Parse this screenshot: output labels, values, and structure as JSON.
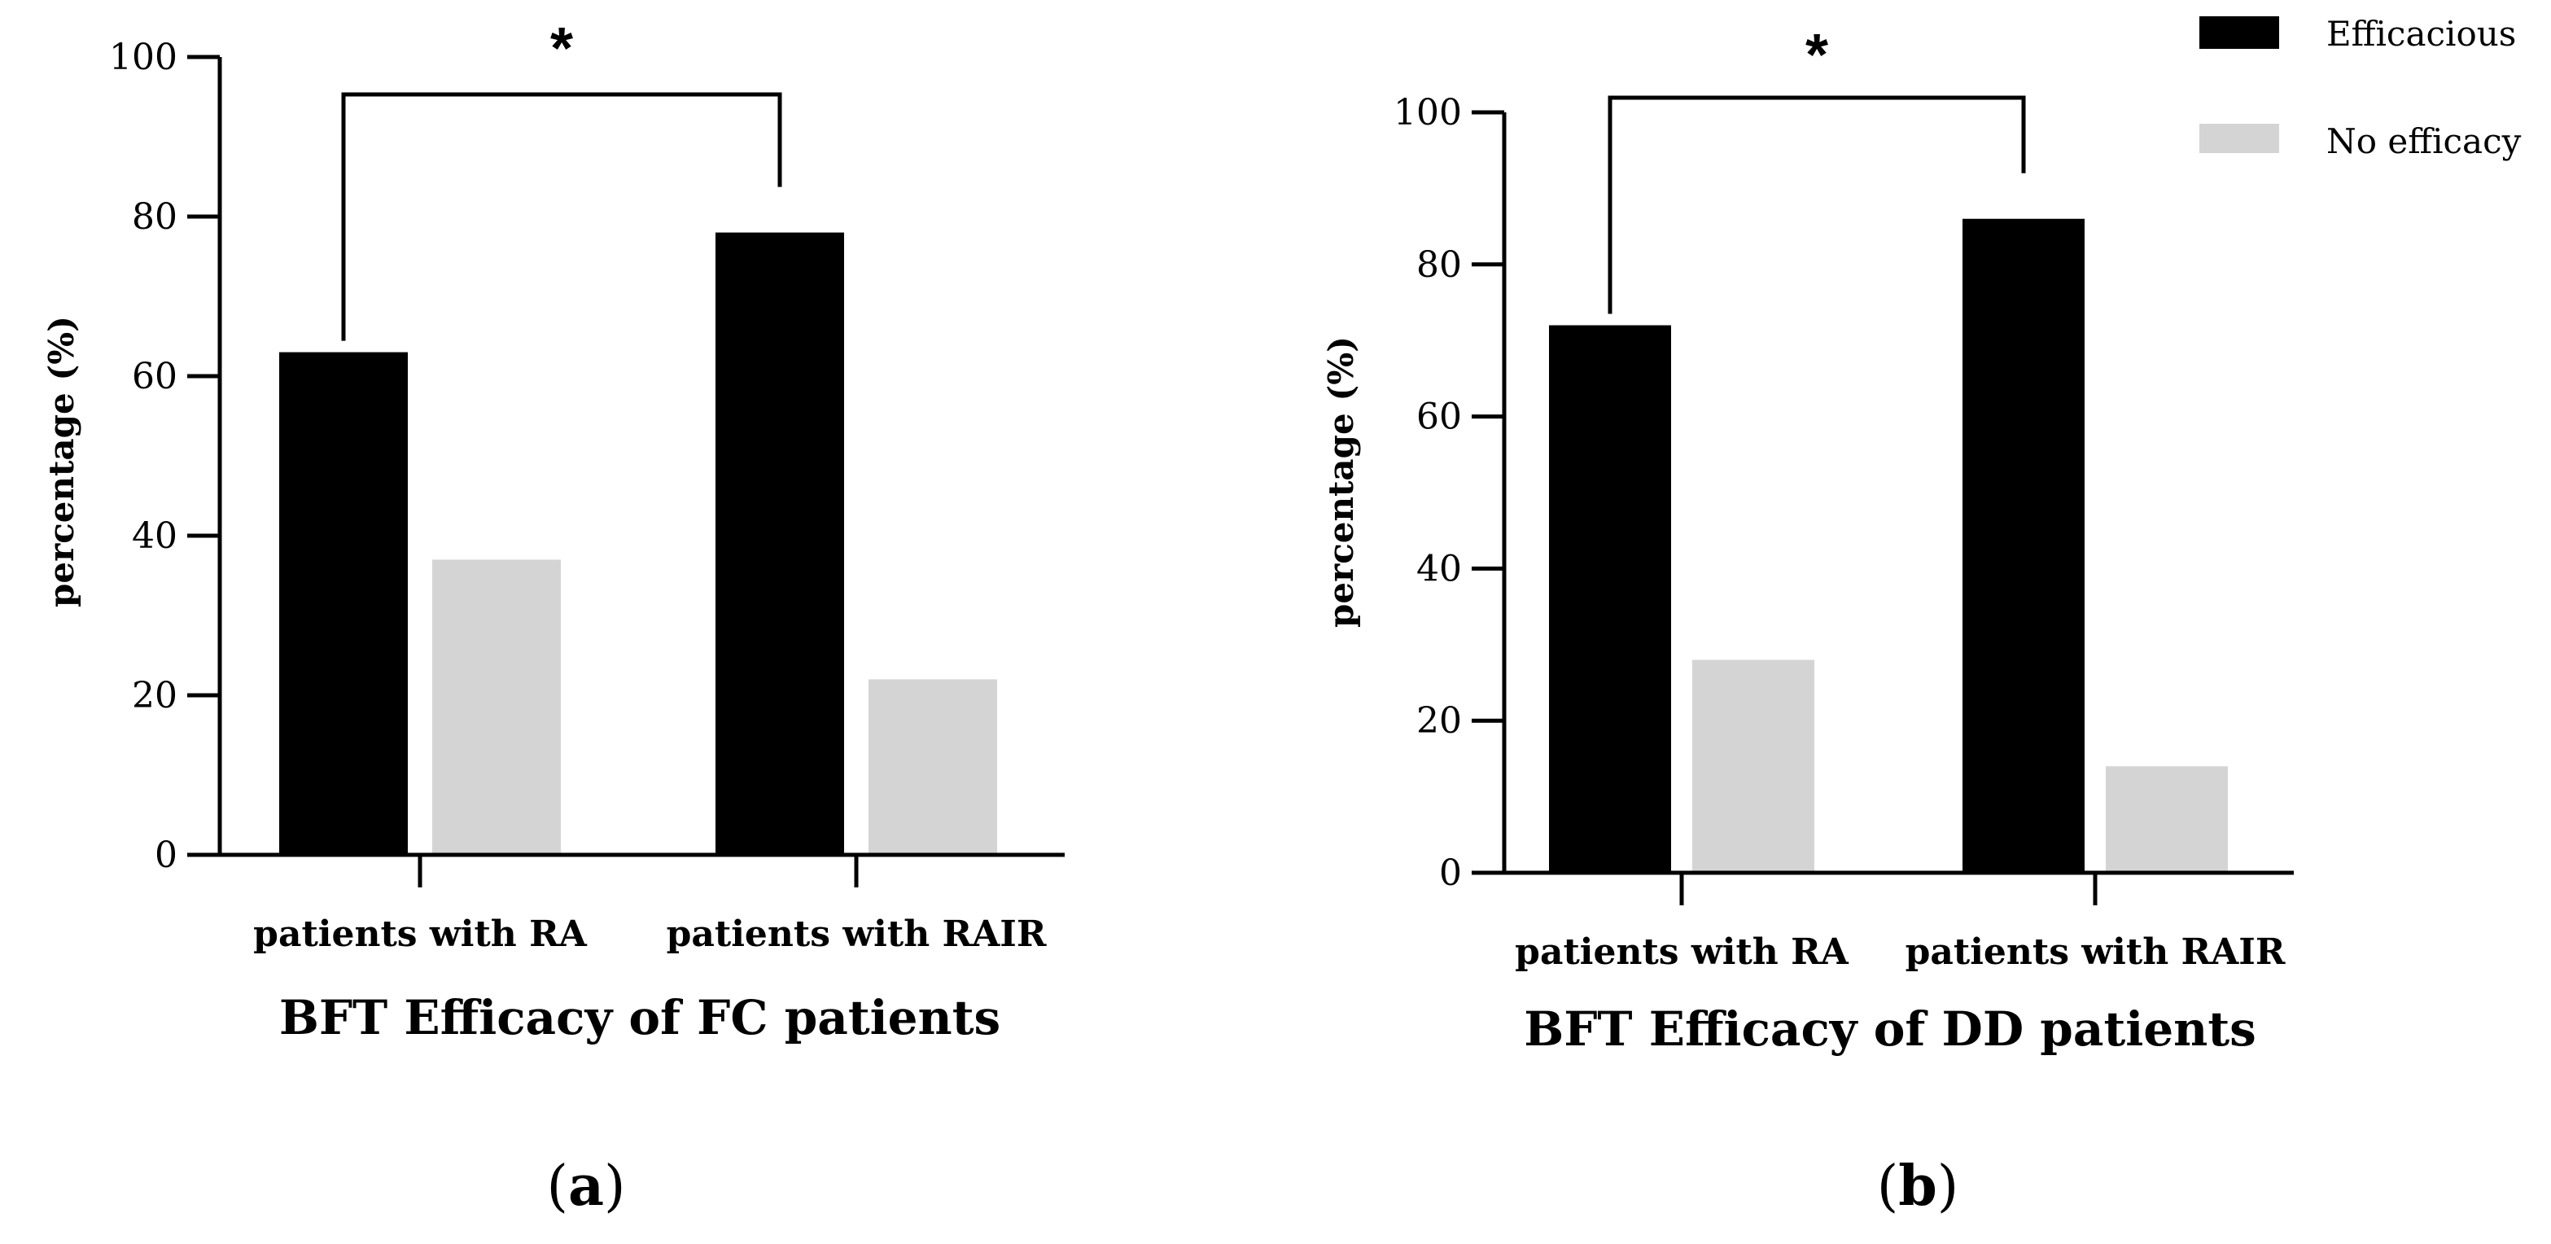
{
  "legend": {
    "items": [
      {
        "label": "Efficacious",
        "color": "#000000"
      },
      {
        "label": "No efficacy",
        "color": "#d4d4d4"
      }
    ]
  },
  "chart_data": [
    {
      "type": "bar",
      "panel_label_open": "(",
      "panel_letter": "a",
      "panel_label_close": ")",
      "title": "BFT Efficacy of FC patients",
      "xlabel": "",
      "ylabel": "percentage (%)",
      "ylim": [
        0,
        100
      ],
      "yticks": [
        0,
        20,
        40,
        60,
        80,
        100
      ],
      "categories": [
        "patients with RA",
        "patients with RAIR"
      ],
      "series": [
        {
          "name": "Efficacious",
          "color": "#000000",
          "values": [
            63,
            78
          ]
        },
        {
          "name": "No efficacy",
          "color": "#d4d4d4",
          "values": [
            37,
            22
          ]
        }
      ],
      "significance": {
        "marker": "*",
        "between": [
          0,
          1
        ]
      }
    },
    {
      "type": "bar",
      "panel_label_open": "(",
      "panel_letter": "b",
      "panel_label_close": ")",
      "title": "BFT Efficacy of DD patients",
      "xlabel": "",
      "ylabel": "percentage (%)",
      "ylim": [
        0,
        100
      ],
      "yticks": [
        0,
        20,
        40,
        60,
        80,
        100
      ],
      "categories": [
        "patients with RA",
        "patients with RAIR"
      ],
      "series": [
        {
          "name": "Efficacious",
          "color": "#000000",
          "values": [
            72,
            86
          ]
        },
        {
          "name": "No efficacy",
          "color": "#d4d4d4",
          "values": [
            28,
            14
          ]
        }
      ],
      "significance": {
        "marker": "*",
        "between": [
          0,
          1
        ]
      }
    }
  ]
}
